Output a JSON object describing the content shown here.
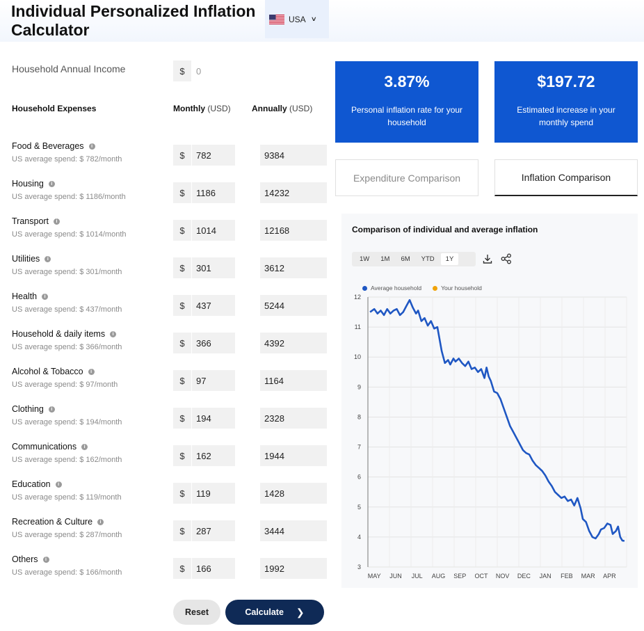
{
  "header": {
    "title": "Individual Personalized Inflation Calculator",
    "country": "USA",
    "country_flag_icon": "us-flag-icon",
    "dropdown_icon": "chevron-down-icon"
  },
  "income": {
    "label": "Household Annual Income",
    "currency": "$",
    "value": "0"
  },
  "columns": {
    "expenses": "Household Expenses",
    "monthly": "Monthly",
    "annually": "Annually",
    "unit": "(USD)"
  },
  "currency_symbol": "$",
  "categories": [
    {
      "name": "Food & Beverages",
      "avg": "US average spend: $ 782/month",
      "monthly": "782",
      "annual": "9384"
    },
    {
      "name": "Housing",
      "avg": "US average spend: $ 1186/month",
      "monthly": "1186",
      "annual": "14232"
    },
    {
      "name": "Transport",
      "avg": "US average spend: $ 1014/month",
      "monthly": "1014",
      "annual": "12168"
    },
    {
      "name": "Utilities",
      "avg": "US average spend: $ 301/month",
      "monthly": "301",
      "annual": "3612"
    },
    {
      "name": "Health",
      "avg": "US average spend: $ 437/month",
      "monthly": "437",
      "annual": "5244"
    },
    {
      "name": "Household & daily items",
      "avg": "US average spend: $ 366/month",
      "monthly": "366",
      "annual": "4392"
    },
    {
      "name": "Alcohol & Tobacco",
      "avg": "US average spend: $ 97/month",
      "monthly": "97",
      "annual": "1164"
    },
    {
      "name": "Clothing",
      "avg": "US average spend: $ 194/month",
      "monthly": "194",
      "annual": "2328"
    },
    {
      "name": "Communications",
      "avg": "US average spend: $ 162/month",
      "monthly": "162",
      "annual": "1944"
    },
    {
      "name": "Education",
      "avg": "US average spend: $ 119/month",
      "monthly": "119",
      "annual": "1428"
    },
    {
      "name": "Recreation & Culture",
      "avg": "US average spend: $ 287/month",
      "monthly": "287",
      "annual": "3444"
    },
    {
      "name": "Others",
      "avg": "US average spend: $ 166/month",
      "monthly": "166",
      "annual": "1992"
    }
  ],
  "buttons": {
    "reset": "Reset",
    "calculate": "Calculate"
  },
  "results": {
    "rate_value": "3.87%",
    "rate_label": "Personal inflation rate for your household",
    "increase_value": "$197.72",
    "increase_label": "Estimated increase in your monthly spend"
  },
  "tabs": {
    "expenditure": "Expenditure Comparison",
    "inflation": "Inflation Comparison",
    "active": "inflation"
  },
  "chart": {
    "range_buttons": [
      "1W",
      "1M",
      "6M",
      "YTD",
      "1Y"
    ],
    "selected_range": "1Y",
    "download_icon": "download-icon",
    "share_icon": "share-icon"
  },
  "colors": {
    "accent": "#0f57d1",
    "dark_button": "#0f2a56",
    "avg_series": "#1f57c3",
    "your_series": "#f0a30a"
  },
  "chart_data": {
    "type": "line",
    "title": "Comparison of individual and average inflation",
    "xlabel": "",
    "ylabel": "",
    "ylim": [
      3,
      12
    ],
    "yticks": [
      3,
      4,
      5,
      6,
      7,
      8,
      9,
      10,
      11,
      12
    ],
    "x_tick_labels": [
      "MAY",
      "JUN",
      "JUL",
      "AUG",
      "SEP",
      "OCT",
      "NOV",
      "DEC",
      "JAN",
      "FEB",
      "MAR",
      "APR"
    ],
    "xlim": [
      -0.3,
      11.8
    ],
    "grid": true,
    "legend": "top-left",
    "series": [
      {
        "name": "Average household",
        "color": "#1f57c3",
        "x": [
          -0.2,
          0.0,
          0.15,
          0.3,
          0.45,
          0.6,
          0.75,
          0.9,
          1.05,
          1.2,
          1.35,
          1.5,
          1.65,
          1.8,
          1.95,
          2.05,
          2.2,
          2.35,
          2.5,
          2.65,
          2.8,
          2.95,
          3.05,
          3.15,
          3.3,
          3.45,
          3.55,
          3.7,
          3.8,
          3.95,
          4.1,
          4.25,
          4.4,
          4.55,
          4.7,
          4.85,
          5.0,
          5.15,
          5.25,
          5.35,
          5.45,
          5.6,
          5.75,
          5.9,
          6.05,
          6.2,
          6.35,
          6.5,
          6.65,
          6.8,
          6.95,
          7.1,
          7.25,
          7.4,
          7.55,
          7.7,
          7.85,
          8.0,
          8.15,
          8.3,
          8.45,
          8.6,
          8.75,
          8.9,
          9.05,
          9.2,
          9.35,
          9.5,
          9.65,
          9.75,
          9.9,
          10.05,
          10.2,
          10.35,
          10.5,
          10.6,
          10.75,
          10.9,
          11.05,
          11.15,
          11.3,
          11.4,
          11.5,
          11.6,
          11.7
        ],
        "values": [
          11.5,
          11.6,
          11.45,
          11.55,
          11.4,
          11.6,
          11.45,
          11.55,
          11.6,
          11.4,
          11.5,
          11.7,
          11.9,
          11.65,
          11.45,
          11.55,
          11.2,
          11.3,
          11.05,
          11.2,
          10.95,
          11.0,
          10.6,
          10.2,
          9.8,
          9.9,
          9.75,
          9.95,
          9.85,
          9.95,
          9.8,
          9.7,
          9.85,
          9.6,
          9.65,
          9.5,
          9.6,
          9.3,
          9.65,
          9.35,
          9.2,
          8.85,
          8.8,
          8.6,
          8.3,
          8.0,
          7.7,
          7.5,
          7.3,
          7.1,
          6.9,
          6.8,
          6.75,
          6.55,
          6.4,
          6.3,
          6.2,
          6.05,
          5.85,
          5.7,
          5.5,
          5.4,
          5.3,
          5.35,
          5.2,
          5.25,
          5.05,
          5.3,
          4.95,
          4.6,
          4.5,
          4.2,
          4.0,
          3.95,
          4.1,
          4.25,
          4.3,
          4.45,
          4.4,
          4.1,
          4.2,
          4.35,
          4.0,
          3.88,
          3.87
        ]
      },
      {
        "name": "Your household",
        "color": "#f0a30a",
        "x": [],
        "values": []
      }
    ]
  }
}
